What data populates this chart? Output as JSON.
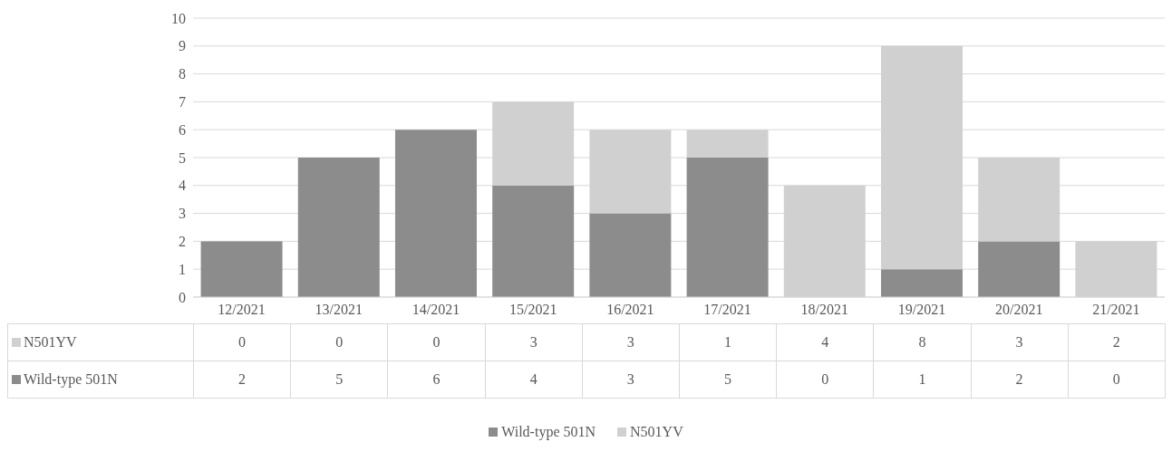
{
  "chart_data": {
    "type": "bar",
    "stacked": true,
    "categories": [
      "12/2021",
      "13/2021",
      "14/2021",
      "15/2021",
      "16/2021",
      "17/2021",
      "18/2021",
      "19/2021",
      "20/2021",
      "21/2021"
    ],
    "series": [
      {
        "name": "Wild-type 501N",
        "color": "#8c8c8c",
        "values": [
          2,
          5,
          6,
          4,
          3,
          5,
          0,
          1,
          2,
          0
        ]
      },
      {
        "name": "N501YV",
        "color": "#d0d0d0",
        "values": [
          0,
          0,
          0,
          3,
          3,
          1,
          4,
          8,
          3,
          2
        ]
      }
    ],
    "ylim": [
      0,
      10
    ],
    "yticks": [
      0,
      1,
      2,
      3,
      4,
      5,
      6,
      7,
      8,
      9,
      10
    ],
    "grid": "y",
    "legend": "bottom",
    "data_labels": true
  }
}
